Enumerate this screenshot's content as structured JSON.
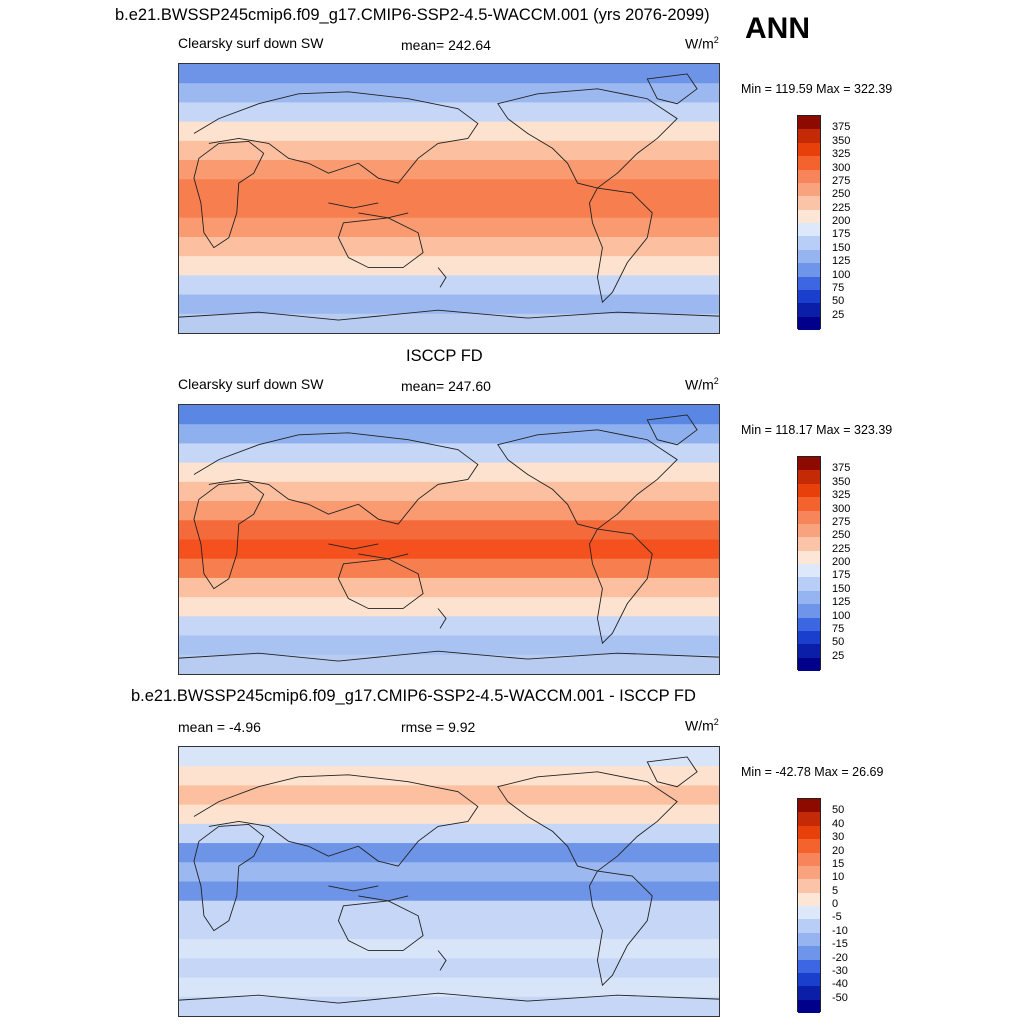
{
  "season": "ANN",
  "panels": [
    {
      "title": "b.e21.BWSSP245cmip6.f09_g17.CMIP6-SSP2-4.5-WACCM.001 (yrs 2076-2099)",
      "left_label": "Clearsky surf down SW",
      "center_label": "mean= 242.64",
      "units": "W/m",
      "units_exp": "2",
      "minmax": "Min = 119.59 Max = 322.39",
      "bands": [
        "#6e94e8",
        "#9cb8f0",
        "#c5d6f6",
        "#fde3cf",
        "#fcc0a0",
        "#f99a70",
        "#f77e4e",
        "#f77e4e",
        "#f99a70",
        "#fcc0a0",
        "#fde3cf",
        "#c5d6f6",
        "#9cb8f0",
        "#b8ccf2"
      ]
    },
    {
      "title": "ISCCP FD",
      "left_label": "Clearsky surf down SW",
      "center_label": "mean= 247.60",
      "units": "W/m",
      "units_exp": "2",
      "minmax": "Min = 118.17 Max = 323.39",
      "bands": [
        "#5a86e4",
        "#8eb0ee",
        "#c5d6f6",
        "#fde3cf",
        "#fcc0a0",
        "#f99a70",
        "#f56a3a",
        "#f4511e",
        "#f77e4e",
        "#fcc0a0",
        "#fde3cf",
        "#c5d6f6",
        "#a8c2f2",
        "#b8ccf2"
      ]
    },
    {
      "title": "b.e21.BWSSP245cmip6.f09_g17.CMIP6-SSP2-4.5-WACCM.001 - ISCCP FD",
      "left_label": "mean =  -4.96",
      "center_label": "rmse =   9.92",
      "units": "W/m",
      "units_exp": "2",
      "minmax": "Min = -42.78 Max =  26.69",
      "bands": [
        "#d8e5f8",
        "#fde3cf",
        "#fcc0a0",
        "#fde3cf",
        "#c5d6f6",
        "#6e94e8",
        "#9cb8f0",
        "#6e94e8",
        "#c5d6f6",
        "#c5d6f6",
        "#d8e5f8",
        "#c5d6f6",
        "#d8e5f8",
        "#c5d6f6"
      ]
    }
  ],
  "colorbars": [
    {
      "labels": [
        "375",
        "350",
        "325",
        "300",
        "275",
        "250",
        "225",
        "200",
        "175",
        "150",
        "125",
        "100",
        "75",
        "50",
        "25"
      ],
      "colors": [
        "#8c0a00",
        "#c42a06",
        "#e8400a",
        "#f4622e",
        "#f7845a",
        "#f9a27e",
        "#fbc4a8",
        "#fde6d6",
        "#dde8fa",
        "#b8cef6",
        "#96b4f0",
        "#6f95ea",
        "#3d66e2",
        "#1a3fcc",
        "#0b1ea8",
        "#00008a"
      ]
    },
    {
      "labels": [
        "50",
        "40",
        "30",
        "20",
        "15",
        "10",
        "5",
        "0",
        "-5",
        "-10",
        "-15",
        "-20",
        "-30",
        "-40",
        "-50"
      ],
      "colors": [
        "#8c0a00",
        "#c42a06",
        "#e8400a",
        "#f4622e",
        "#f7845a",
        "#f9a27e",
        "#fbc4a8",
        "#fde6d6",
        "#dde8fa",
        "#b8cef6",
        "#96b4f0",
        "#6f95ea",
        "#3d66e2",
        "#1a3fcc",
        "#0b1ea8",
        "#00008a"
      ]
    }
  ]
}
